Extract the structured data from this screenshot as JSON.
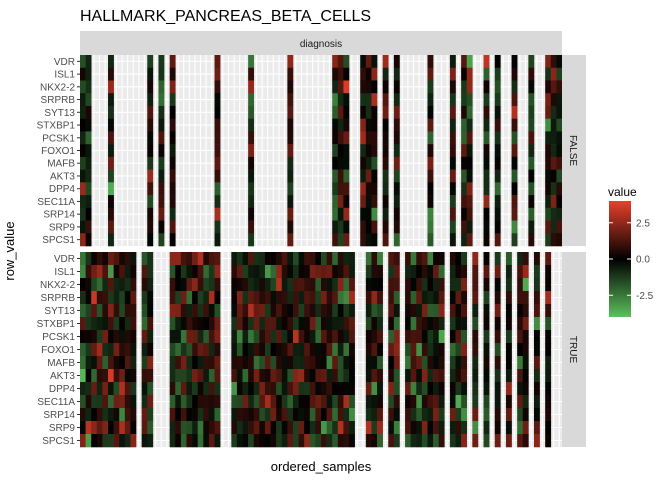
{
  "chart_data": {
    "type": "heatmap",
    "title": "HALLMARK_PANCREAS_BETA_CELLS",
    "xlabel": "ordered_samples",
    "ylabel": "row_value",
    "rows": [
      "VDR",
      "ISL1",
      "NKX2-2",
      "SRPRB",
      "SYT13",
      "STXBP1",
      "PCSK1",
      "FOXO1",
      "MAFB",
      "AKT3",
      "DPP4",
      "SEC11A",
      "SRP14",
      "SRP9",
      "SPCS1"
    ],
    "facet_column_label": "diagnosis",
    "facet_rows": [
      "FALSE",
      "TRUE"
    ],
    "legend": {
      "title": "value",
      "breaks": [
        "2.5",
        "0.0",
        "-2.5"
      ],
      "break_values": [
        2.5,
        0.0,
        -2.5
      ],
      "range": [
        -4,
        4
      ],
      "low_color": "#5cc05c",
      "mid_color": "#000000",
      "high_color": "#e8412b"
    },
    "facet_false_columns": [
      1,
      2,
      6,
      13,
      15,
      17,
      25,
      31,
      38,
      46,
      47,
      48,
      51,
      52,
      53,
      55,
      57,
      63,
      67,
      69,
      70,
      73,
      75,
      78,
      81,
      84,
      85,
      86
    ],
    "facet_true_columns": [
      1,
      2,
      3,
      4,
      5,
      6,
      7,
      8,
      9,
      10,
      12,
      13,
      17,
      18,
      19,
      20,
      21,
      22,
      23,
      24,
      25,
      28,
      29,
      30,
      31,
      32,
      33,
      34,
      35,
      36,
      37,
      38,
      39,
      40,
      41,
      42,
      43,
      44,
      45,
      46,
      47,
      48,
      49,
      52,
      53,
      54,
      56,
      57,
      59,
      60,
      61,
      62,
      63,
      64,
      65,
      67,
      68,
      69,
      71,
      73,
      75,
      77,
      79,
      80,
      82,
      84
    ],
    "n_samples": 86,
    "grid": true
  }
}
